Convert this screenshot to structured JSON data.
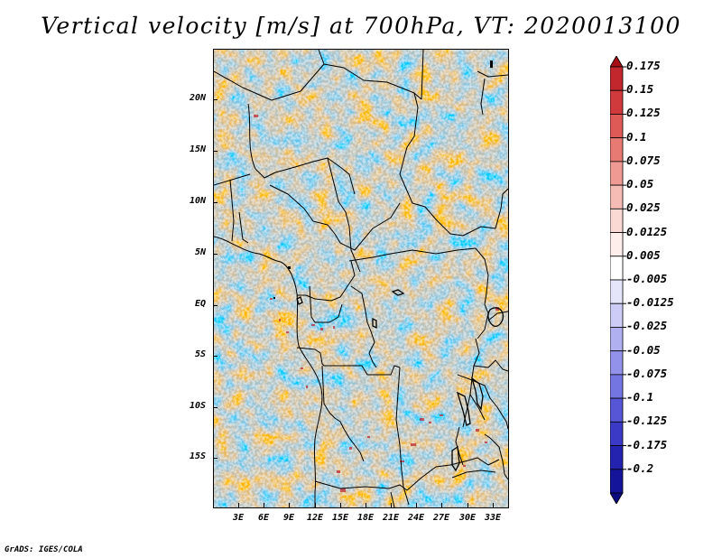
{
  "title": "Vertical velocity [m/s] at 700hPa, VT: 2020013100",
  "map": {
    "lat_labels": [
      "20N",
      "15N",
      "10N",
      "5N",
      "EQ",
      "5S",
      "10S",
      "15S"
    ],
    "lon_labels": [
      "3E",
      "6E",
      "9E",
      "12E",
      "15E",
      "18E",
      "21E",
      "24E",
      "27E",
      "30E",
      "33E"
    ]
  },
  "colorbar": {
    "labels": [
      "0.175",
      "0.15",
      "0.125",
      "0.1",
      "0.075",
      "0.05",
      "0.025",
      "0.0125",
      "0.005",
      "-0.005",
      "-0.0125",
      "-0.025",
      "-0.05",
      "-0.075",
      "-0.1",
      "-0.125",
      "-0.175",
      "-0.2"
    ],
    "colors": [
      "#a50f15",
      "#c1272d",
      "#d03a3c",
      "#dd5a56",
      "#e77a73",
      "#ef9b94",
      "#f5bcb6",
      "#fad9d5",
      "#fdeeec",
      "#ffffff",
      "#e6e6fb",
      "#ccccf6",
      "#b0b0f0",
      "#9292ea",
      "#7474e2",
      "#5656d6",
      "#3a3ac6",
      "#2323b0",
      "#14149a",
      "#0b0b80"
    ]
  },
  "credit": "GrADS: IGES/COLA"
}
